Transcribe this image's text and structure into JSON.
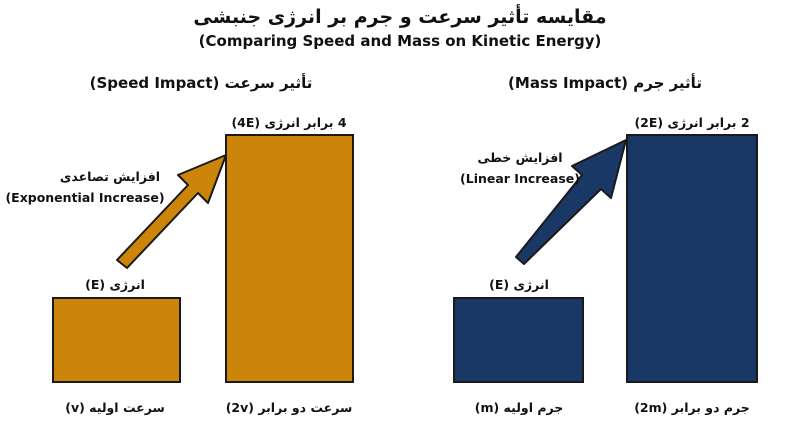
{
  "title": {
    "fa": "مقایسه تأثیر سرعت و جرم بر انرژی جنبشی",
    "en": "(Comparing Speed and Mass on Kinetic Energy)"
  },
  "colors": {
    "speed": "#CC8508",
    "mass": "#1A3866",
    "outline": "#1A1A1A"
  },
  "speed_panel": {
    "title": "تأثیر سرعت (Speed Impact)",
    "initial_energy": "انرژی (E)",
    "final_energy": "4 برابر انرژی (4E)",
    "arrow_label_fa": "افزایش تصاعدی",
    "arrow_label_en": "(Exponential Increase)",
    "initial_caption": "سرعت اولیه (v)",
    "final_caption": "سرعت دو برابر (2v)",
    "energy_ratio": 4
  },
  "mass_panel": {
    "title": "تأثیر جرم (Mass Impact)",
    "initial_energy": "انرژی (E)",
    "final_energy": "2 برابر انرژی (2E)",
    "arrow_label_fa": "افزایش خطی",
    "arrow_label_en": "(Linear Increase)",
    "initial_caption": "جرم اولیه (m)",
    "final_caption": "جرم دو برابر (2m)",
    "energy_ratio": 2
  }
}
